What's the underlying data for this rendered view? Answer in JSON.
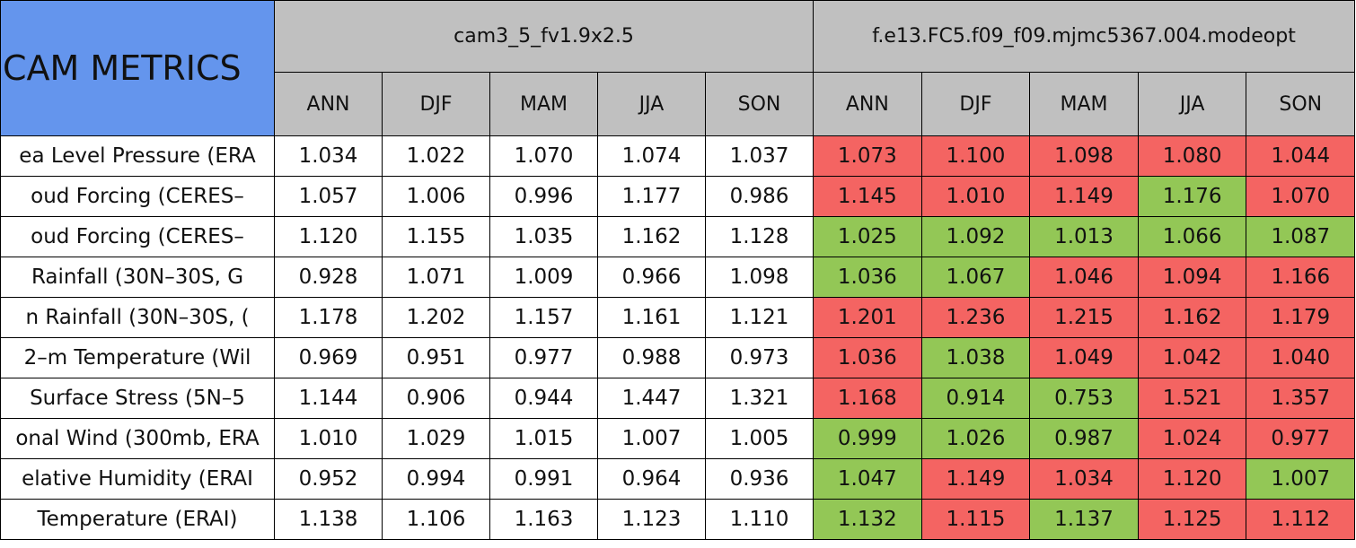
{
  "table": {
    "title": "CAM METRICS",
    "groups": [
      {
        "name": "cam3_5_fv1.9x2.5",
        "columns": [
          "ANN",
          "DJF",
          "MAM",
          "JJA",
          "SON"
        ]
      },
      {
        "name": "f.e13.FC5.f09_f09.mjmc5367.004.modeopt",
        "columns": [
          "ANN",
          "DJF",
          "MAM",
          "JJA",
          "SON"
        ]
      }
    ],
    "rows": [
      {
        "label": "ea Level Pressure (ERA",
        "values": [
          "1.034",
          "1.022",
          "1.070",
          "1.074",
          "1.037",
          "1.073",
          "1.100",
          "1.098",
          "1.080",
          "1.044"
        ],
        "colors": [
          "#ffffff",
          "#ffffff",
          "#ffffff",
          "#ffffff",
          "#ffffff",
          "#f46462",
          "#f46462",
          "#f46462",
          "#f46462",
          "#f46462"
        ]
      },
      {
        "label": "oud Forcing (CERES–",
        "values": [
          "1.057",
          "1.006",
          "0.996",
          "1.177",
          "0.986",
          "1.145",
          "1.010",
          "1.149",
          "1.176",
          "1.070"
        ],
        "colors": [
          "#ffffff",
          "#ffffff",
          "#ffffff",
          "#ffffff",
          "#ffffff",
          "#f46462",
          "#f46462",
          "#f46462",
          "#93c756",
          "#f46462"
        ]
      },
      {
        "label": "oud Forcing (CERES–",
        "values": [
          "1.120",
          "1.155",
          "1.035",
          "1.162",
          "1.128",
          "1.025",
          "1.092",
          "1.013",
          "1.066",
          "1.087"
        ],
        "colors": [
          "#ffffff",
          "#ffffff",
          "#ffffff",
          "#ffffff",
          "#ffffff",
          "#93c756",
          "#93c756",
          "#93c756",
          "#93c756",
          "#93c756"
        ]
      },
      {
        "label": "Rainfall (30N–30S, G",
        "values": [
          "0.928",
          "1.071",
          "1.009",
          "0.966",
          "1.098",
          "1.036",
          "1.067",
          "1.046",
          "1.094",
          "1.166"
        ],
        "colors": [
          "#ffffff",
          "#ffffff",
          "#ffffff",
          "#ffffff",
          "#ffffff",
          "#93c756",
          "#93c756",
          "#f46462",
          "#f46462",
          "#f46462"
        ]
      },
      {
        "label": "n Rainfall (30N–30S, (",
        "values": [
          "1.178",
          "1.202",
          "1.157",
          "1.161",
          "1.121",
          "1.201",
          "1.236",
          "1.215",
          "1.162",
          "1.179"
        ],
        "colors": [
          "#ffffff",
          "#ffffff",
          "#ffffff",
          "#ffffff",
          "#ffffff",
          "#f46462",
          "#f46462",
          "#f46462",
          "#f46462",
          "#f46462"
        ]
      },
      {
        "label": "2–m Temperature (Wil",
        "values": [
          "0.969",
          "0.951",
          "0.977",
          "0.988",
          "0.973",
          "1.036",
          "1.038",
          "1.049",
          "1.042",
          "1.040"
        ],
        "colors": [
          "#ffffff",
          "#ffffff",
          "#ffffff",
          "#ffffff",
          "#ffffff",
          "#f46462",
          "#93c756",
          "#f46462",
          "#f46462",
          "#f46462"
        ]
      },
      {
        "label": "Surface Stress (5N–5",
        "values": [
          "1.144",
          "0.906",
          "0.944",
          "1.447",
          "1.321",
          "1.168",
          "0.914",
          "0.753",
          "1.521",
          "1.357"
        ],
        "colors": [
          "#ffffff",
          "#ffffff",
          "#ffffff",
          "#ffffff",
          "#ffffff",
          "#f46462",
          "#93c756",
          "#93c756",
          "#f46462",
          "#f46462"
        ]
      },
      {
        "label": "onal Wind (300mb, ERA",
        "values": [
          "1.010",
          "1.029",
          "1.015",
          "1.007",
          "1.005",
          "0.999",
          "1.026",
          "0.987",
          "1.024",
          "0.977"
        ],
        "colors": [
          "#ffffff",
          "#ffffff",
          "#ffffff",
          "#ffffff",
          "#ffffff",
          "#93c756",
          "#93c756",
          "#93c756",
          "#f46462",
          "#f46462"
        ]
      },
      {
        "label": "elative Humidity (ERAI",
        "values": [
          "0.952",
          "0.994",
          "0.991",
          "0.964",
          "0.936",
          "1.047",
          "1.149",
          "1.034",
          "1.120",
          "1.007"
        ],
        "colors": [
          "#ffffff",
          "#ffffff",
          "#ffffff",
          "#ffffff",
          "#ffffff",
          "#93c756",
          "#f46462",
          "#f46462",
          "#f46462",
          "#93c756"
        ]
      },
      {
        "label": "Temperature (ERAI)",
        "values": [
          "1.138",
          "1.106",
          "1.163",
          "1.123",
          "1.110",
          "1.132",
          "1.115",
          "1.137",
          "1.125",
          "1.112"
        ],
        "colors": [
          "#ffffff",
          "#ffffff",
          "#ffffff",
          "#ffffff",
          "#ffffff",
          "#93c756",
          "#f46462",
          "#93c756",
          "#f46462",
          "#f46462"
        ]
      }
    ]
  }
}
